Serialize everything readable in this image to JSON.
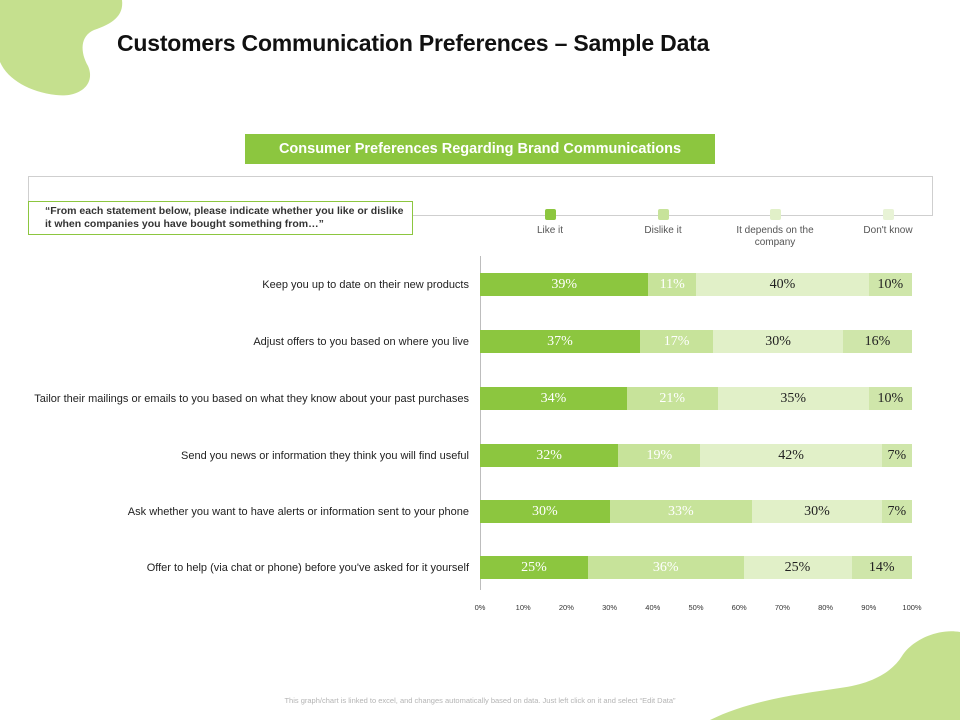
{
  "title": "Customers Communication Preferences – Sample Data",
  "chart_data": {
    "type": "bar",
    "orientation": "horizontal",
    "stacked": true,
    "subtitle": "Consumer Preferences  Regarding Brand Communications",
    "question": "“From each statement below, please indicate whether you like or dislike it when companies you have bought something from…”",
    "categories": [
      "Keep you up to date on their new products",
      "Adjust offers to you based on where you live",
      "Tailor their mailings or emails to you based on what they know about your past purchases",
      "Send you news or information they think you will find useful",
      "Ask whether you want to have alerts or information sent to your phone",
      "Offer to help (via chat or phone) before you've asked for it yourself"
    ],
    "series": [
      {
        "name": "Like it",
        "values": [
          39,
          37,
          34,
          32,
          30,
          25
        ],
        "labels": [
          "39%",
          "37%",
          "34%",
          "32%",
          "30%",
          "25%"
        ]
      },
      {
        "name": "Dislike  it",
        "values": [
          11,
          17,
          21,
          19,
          33,
          36
        ],
        "labels": [
          "11%",
          "17%",
          "21%",
          "19%",
          "33%",
          "36%"
        ]
      },
      {
        "name": "It depends on the company",
        "values": [
          40,
          30,
          35,
          42,
          30,
          25
        ],
        "labels": [
          "40%",
          "30%",
          "35%",
          "42%",
          "30%",
          "25%"
        ]
      },
      {
        "name": "Don't know",
        "values": [
          10,
          16,
          10,
          7,
          7,
          14
        ],
        "labels": [
          "10%",
          "16%",
          "10%",
          "7%",
          "7%",
          "14%"
        ]
      }
    ],
    "xlim": [
      0,
      100
    ],
    "xticks": [
      "0%",
      "10%",
      "20%",
      "30%",
      "40%",
      "50%",
      "60%",
      "70%",
      "80%",
      "90%",
      "100%"
    ],
    "colors": [
      "#8cc63f",
      "#c7e39a",
      "#e1f0c8",
      "#cfe6aa"
    ],
    "label_colors": [
      "#ffffff",
      "#ffffff",
      "#222222",
      "#222222"
    ],
    "legend_position": "top"
  },
  "footnote": "This graph/chart is linked to excel, and changes automatically based on data. Just left click on it and select “Edit Data”"
}
